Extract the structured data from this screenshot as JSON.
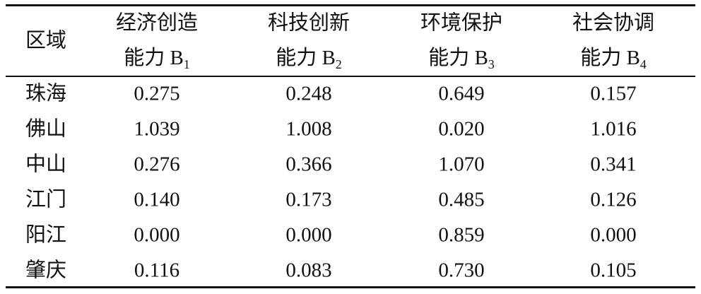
{
  "table": {
    "header": [
      {
        "line1": "区域"
      },
      {
        "line1": "经济创造",
        "line2": "能力 B",
        "sub": "1"
      },
      {
        "line1": "科技创新",
        "line2": "能力 B",
        "sub": "2"
      },
      {
        "line1": "环境保护",
        "line2": "能力 B",
        "sub": "3"
      },
      {
        "line1": "社会协调",
        "line2": "能力 B",
        "sub": "4"
      }
    ],
    "rows": [
      [
        "珠海",
        "0.275",
        "0.248",
        "0.649",
        "0.157"
      ],
      [
        "佛山",
        "1.039",
        "1.008",
        "0.020",
        "1.016"
      ],
      [
        "中山",
        "0.276",
        "0.366",
        "1.070",
        "0.341"
      ],
      [
        "江门",
        "0.140",
        "0.173",
        "0.485",
        "0.126"
      ],
      [
        "阳江",
        "0.000",
        "0.000",
        "0.859",
        "0.000"
      ],
      [
        "肇庆",
        "0.116",
        "0.083",
        "0.730",
        "0.105"
      ]
    ]
  }
}
